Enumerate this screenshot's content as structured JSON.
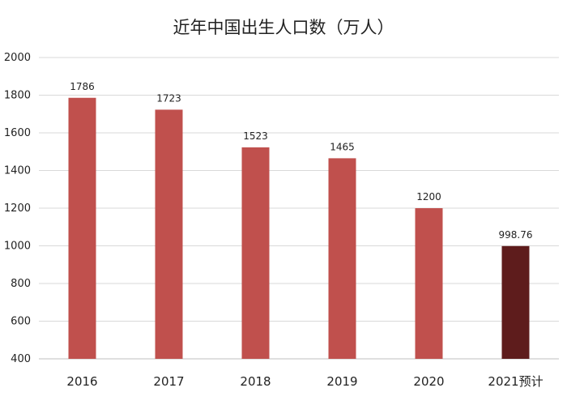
{
  "chart_data": {
    "type": "bar",
    "title": "近年中国出生人口数（万人）",
    "categories": [
      "2016",
      "2017",
      "2018",
      "2019",
      "2020",
      "2021预计"
    ],
    "values": [
      1786,
      1723,
      1523,
      1465,
      1200,
      998.76
    ],
    "data_labels": [
      "1786",
      "1723",
      "1523",
      "1465",
      "1200",
      "998.76"
    ],
    "ylim": [
      400,
      2000
    ],
    "yticks": [
      400,
      600,
      800,
      1000,
      1200,
      1400,
      1600,
      1800,
      2000
    ],
    "xlabel": "",
    "ylabel": "",
    "grid": true,
    "legend": "none",
    "colors": {
      "bar": "#c0504d",
      "highlight_bar": "#5e1c1c",
      "grid": "#d9d9d9"
    },
    "highlight_index": 5
  }
}
